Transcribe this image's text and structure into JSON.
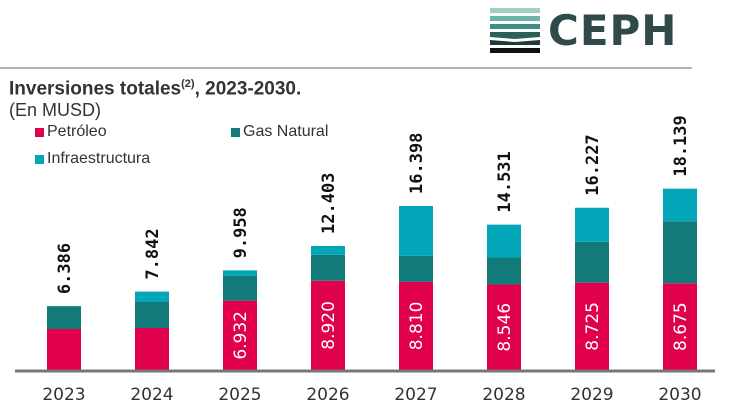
{
  "logo": {
    "text": "CEPH"
  },
  "chart_data": {
    "type": "bar",
    "stacked": true,
    "title": "Inversiones totales",
    "title_superscript": "(2)",
    "title_suffix": ", 2023-2030.",
    "subtitle": "(En MUSD)",
    "categories": [
      "2023",
      "2024",
      "2025",
      "2026",
      "2027",
      "2028",
      "2029",
      "2030"
    ],
    "series": [
      {
        "name": "Petróleo",
        "color": "#e0004d",
        "values": [
          4.1,
          4.2,
          6.932,
          8.92,
          8.81,
          8.546,
          8.725,
          8.675
        ],
        "labels": [
          "",
          "",
          "6.932",
          "8.920",
          "8.810",
          "8.546",
          "8.725",
          "8.675"
        ]
      },
      {
        "name": "Gas Natural",
        "color": "#127a78",
        "values": [
          2.25,
          2.6,
          2.5,
          2.6,
          2.6,
          2.7,
          4.1,
          6.2
        ]
      },
      {
        "name": "Infraestructura",
        "color": "#03a5b8",
        "values": [
          0.04,
          1.04,
          0.53,
          0.88,
          4.99,
          3.29,
          3.4,
          3.26
        ]
      }
    ],
    "totals": [
      "6.386",
      "7.842",
      "9.958",
      "12.403",
      "16.398",
      "14.531",
      "16.227",
      "18.139"
    ],
    "ylim": [
      0,
      19
    ],
    "grid": false,
    "legend_position": "top-left"
  }
}
